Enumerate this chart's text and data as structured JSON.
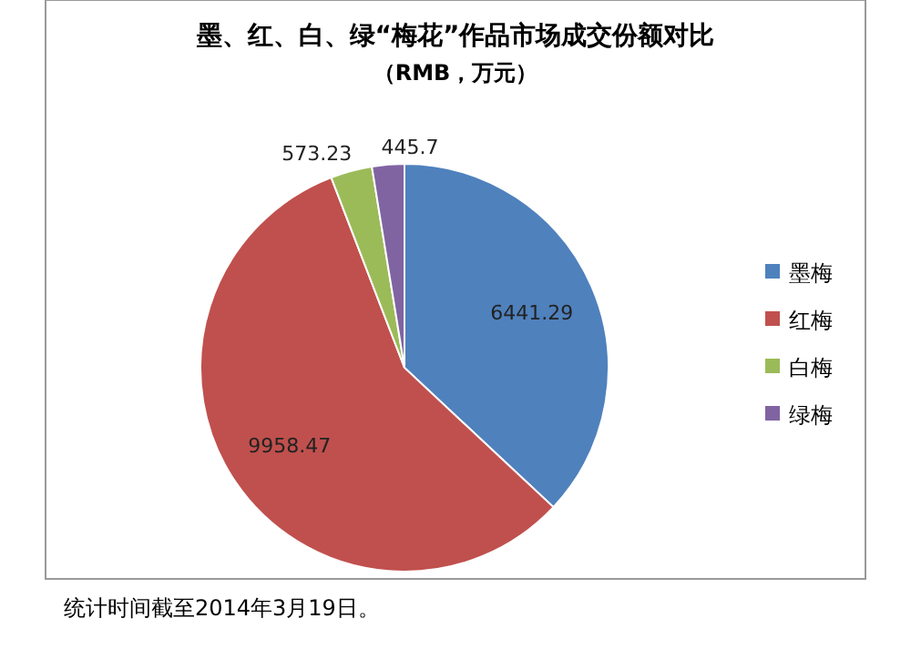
{
  "chart_data": {
    "type": "pie",
    "title": "墨、红、白、绿“梅花”作品市场成交份额对比",
    "subtitle": "（RMB，万元）",
    "categories": [
      "墨梅",
      "红梅",
      "白梅",
      "绿梅"
    ],
    "values": [
      6441.29,
      9958.47,
      573.23,
      445.7
    ],
    "colors": [
      "#4f81bd",
      "#c0504d",
      "#9bbb59",
      "#8064a2"
    ],
    "data_labels": true,
    "legend": "right",
    "annotations": [
      "统计时间截至2014年3月19日。"
    ]
  }
}
